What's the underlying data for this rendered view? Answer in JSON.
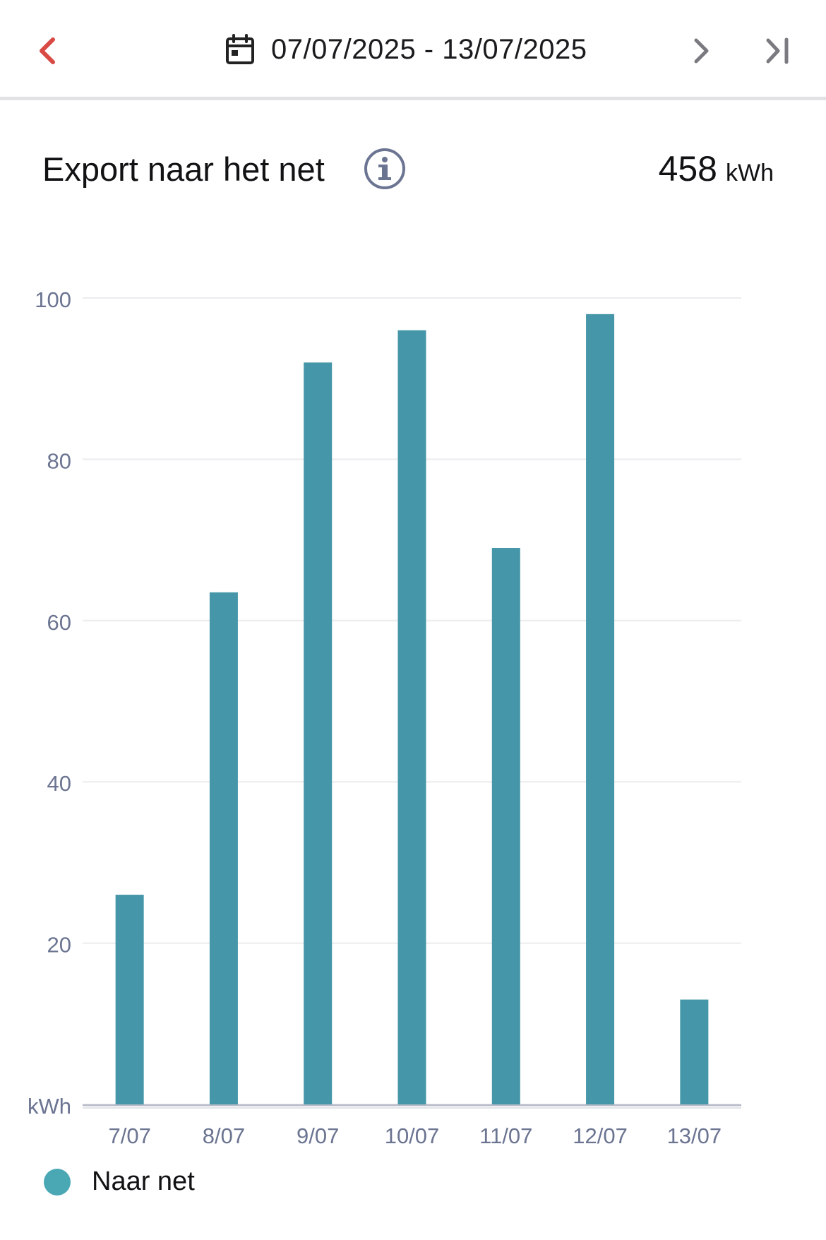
{
  "header": {
    "date_range": "07/07/2025 - 13/07/2025",
    "prev_icon": "chevron-left-icon",
    "next_icon": "chevron-right-icon",
    "last_icon": "skip-to-last-icon",
    "calendar_icon": "calendar-icon",
    "accent_color": "#d94a44"
  },
  "title": {
    "text": "Export naar het net",
    "info_icon": "info-icon",
    "total_value": "458",
    "total_unit": "kWh"
  },
  "legend": {
    "label": "Naar net",
    "color": "#4aa8b4"
  },
  "chart_data": {
    "type": "bar",
    "categories": [
      "7/07",
      "8/07",
      "9/07",
      "10/07",
      "11/07",
      "12/07",
      "13/07"
    ],
    "series": [
      {
        "name": "Naar net",
        "values": [
          26,
          63.5,
          92,
          96,
          69,
          98,
          13
        ],
        "color": "#4596a8"
      }
    ],
    "ylabel": "kWh",
    "yticks": [
      20,
      40,
      60,
      80,
      100
    ],
    "ylim": [
      0,
      100
    ],
    "grid": true
  }
}
